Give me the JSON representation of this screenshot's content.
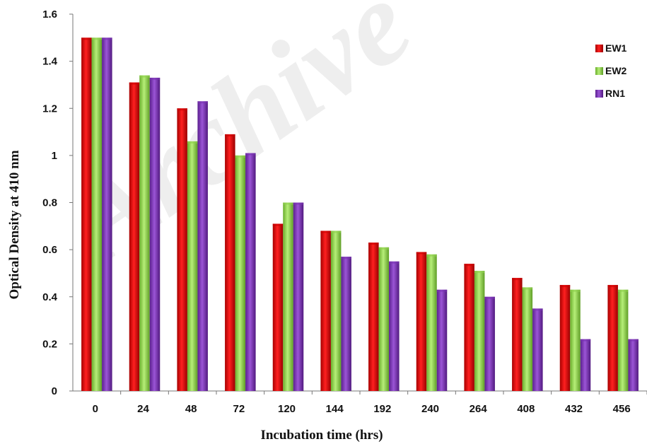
{
  "chart_data": {
    "type": "bar",
    "xlabel": "Incubation time (hrs)",
    "ylabel": "Optical Density at 410 nm",
    "categories": [
      "0",
      "24",
      "48",
      "72",
      "120",
      "144",
      "192",
      "240",
      "264",
      "408",
      "432",
      "456"
    ],
    "ylim": [
      0,
      1.6
    ],
    "yticks": [
      "0",
      "0.2",
      "0.4",
      "0.6",
      "0.8",
      "1",
      "1.2",
      "1.4",
      "1.6"
    ],
    "ytick_values": [
      0,
      0.2,
      0.4,
      0.6,
      0.8,
      1.0,
      1.2,
      1.4,
      1.6
    ],
    "grid": false,
    "legend_position": "top-right",
    "series": [
      {
        "name": "EW1",
        "color": "#cc0000",
        "values": [
          1.5,
          1.31,
          1.2,
          1.09,
          0.71,
          0.68,
          0.63,
          0.59,
          0.54,
          0.48,
          0.45,
          0.45
        ]
      },
      {
        "name": "EW2",
        "color": "#8fd14f",
        "values": [
          1.5,
          1.34,
          1.06,
          1.0,
          0.8,
          0.68,
          0.61,
          0.58,
          0.51,
          0.44,
          0.43,
          0.43
        ]
      },
      {
        "name": "RN1",
        "color": "#7a34b3",
        "values": [
          1.5,
          1.33,
          1.23,
          1.01,
          0.8,
          0.57,
          0.55,
          0.43,
          0.4,
          0.35,
          0.22,
          0.22
        ]
      }
    ]
  },
  "watermark": "Archive"
}
